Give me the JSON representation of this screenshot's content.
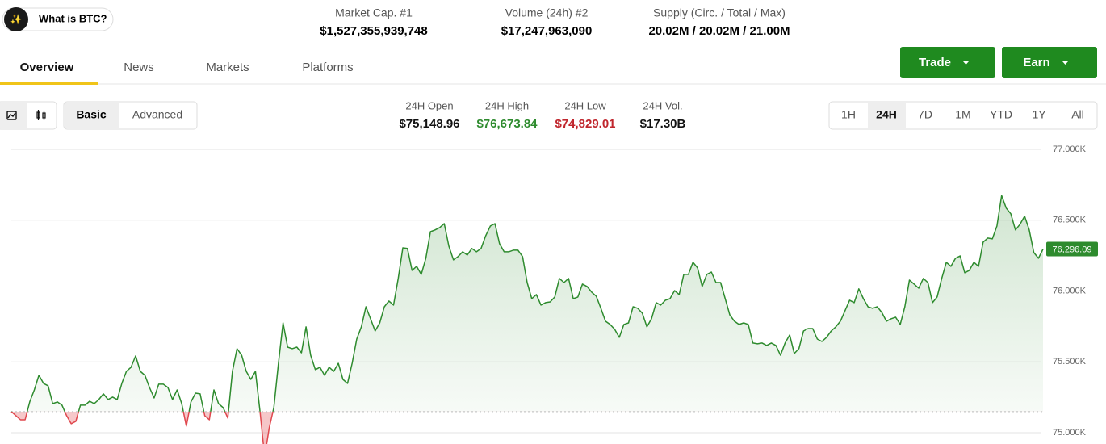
{
  "header": {
    "ask": "What is BTC?",
    "stats": [
      {
        "label": "Market Cap. #1",
        "value": "$1,527,355,939,748"
      },
      {
        "label": "Volume (24h) #2",
        "value": "$17,247,963,090"
      },
      {
        "label": "Supply (Circ. / Total / Max)",
        "value": "20.02M / 20.02M / 21.00M"
      }
    ]
  },
  "tabs": [
    "Overview",
    "News",
    "Markets",
    "Platforms"
  ],
  "actions": [
    "Trade",
    "Earn"
  ],
  "view_modes": [
    "Basic",
    "Advanced"
  ],
  "day_stats": [
    {
      "label": "24H Open",
      "value": "$75,148.96"
    },
    {
      "label": "24H High",
      "value": "$76,673.84"
    },
    {
      "label": "24H Low",
      "value": "$74,829.01"
    },
    {
      "label": "24H Vol.",
      "value": "$17.30B"
    }
  ],
  "ranges": [
    "1H",
    "24H",
    "7D",
    "1M",
    "YTD",
    "1Y",
    "All"
  ],
  "chart_data": {
    "type": "line",
    "color": "#2e8b2e",
    "below_color": "#e0484e",
    "ylim": [
      74920,
      77000
    ],
    "yticks": [
      {
        "value": 75000,
        "label": "75.000K"
      },
      {
        "value": 75500,
        "label": "75.500K"
      },
      {
        "value": 76000,
        "label": "76.000K"
      },
      {
        "value": 76500,
        "label": "76.500K"
      },
      {
        "value": 77000,
        "label": "77.000K"
      }
    ],
    "grid": true,
    "open_line": 75148.96,
    "last_price": {
      "value": 76296.09,
      "label": "76,296.09"
    },
    "values": [
      75148.96,
      75120,
      75091,
      75091,
      75217,
      75302,
      75405,
      75348,
      75331,
      75205,
      75217,
      75194,
      75120,
      75063,
      75080,
      75194,
      75194,
      75222,
      75205,
      75234,
      75274,
      75234,
      75251,
      75234,
      75348,
      75433,
      75462,
      75542,
      75433,
      75405,
      75319,
      75245,
      75342,
      75342,
      75319,
      75234,
      75302,
      75205,
      75046,
      75217,
      75279,
      75274,
      75120,
      75091,
      75302,
      75205,
      75177,
      75103,
      75433,
      75593,
      75547,
      75433,
      75376,
      75433,
      75148,
      74829.01,
      75034,
      75177,
      75490,
      75775,
      75604,
      75593,
      75604,
      75564,
      75747,
      75547,
      75445,
      75462,
      75405,
      75462,
      75433,
      75490,
      75376,
      75348,
      75490,
      75661,
      75747,
      75889,
      75804,
      75718,
      75775,
      75889,
      75929,
      75901,
      76089,
      76305,
      76300,
      76146,
      76174,
      76117,
      76231,
      76419,
      76431,
      76448,
      76476,
      76317,
      76220,
      76243,
      76277,
      76254,
      76300,
      76277,
      76300,
      76391,
      76459,
      76476,
      76334,
      76277,
      76277,
      76288,
      76288,
      76243,
      76060,
      75946,
      75975,
      75901,
      75918,
      75923,
      75958,
      76089,
      76060,
      76089,
      75946,
      75958,
      76049,
      76032,
      75992,
      75963,
      75878,
      75787,
      75764,
      75730,
      75673,
      75764,
      75775,
      75889,
      75878,
      75844,
      75747,
      75804,
      75918,
      75901,
      75935,
      75946,
      76003,
      75975,
      76117,
      76117,
      76203,
      76163,
      76032,
      76117,
      76134,
      76060,
      76060,
      75946,
      75832,
      75787,
      75764,
      75775,
      75764,
      75633,
      75627,
      75633,
      75616,
      75633,
      75616,
      75547,
      75633,
      75690,
      75559,
      75593,
      75718,
      75735,
      75735,
      75661,
      75644,
      75673,
      75718,
      75747,
      75787,
      75861,
      75935,
      75918,
      76015,
      75946,
      75889,
      75878,
      75889,
      75849,
      75787,
      75804,
      75815,
      75764,
      75889,
      76077,
      76049,
      76020,
      76089,
      76060,
      75918,
      75958,
      76089,
      76203,
      76174,
      76231,
      76248,
      76129,
      76146,
      76203,
      76174,
      76345,
      76374,
      76368,
      76459,
      76673.84,
      76585,
      76545,
      76431,
      76471,
      76528,
      76431,
      76271,
      76231,
      76296.09
    ]
  }
}
